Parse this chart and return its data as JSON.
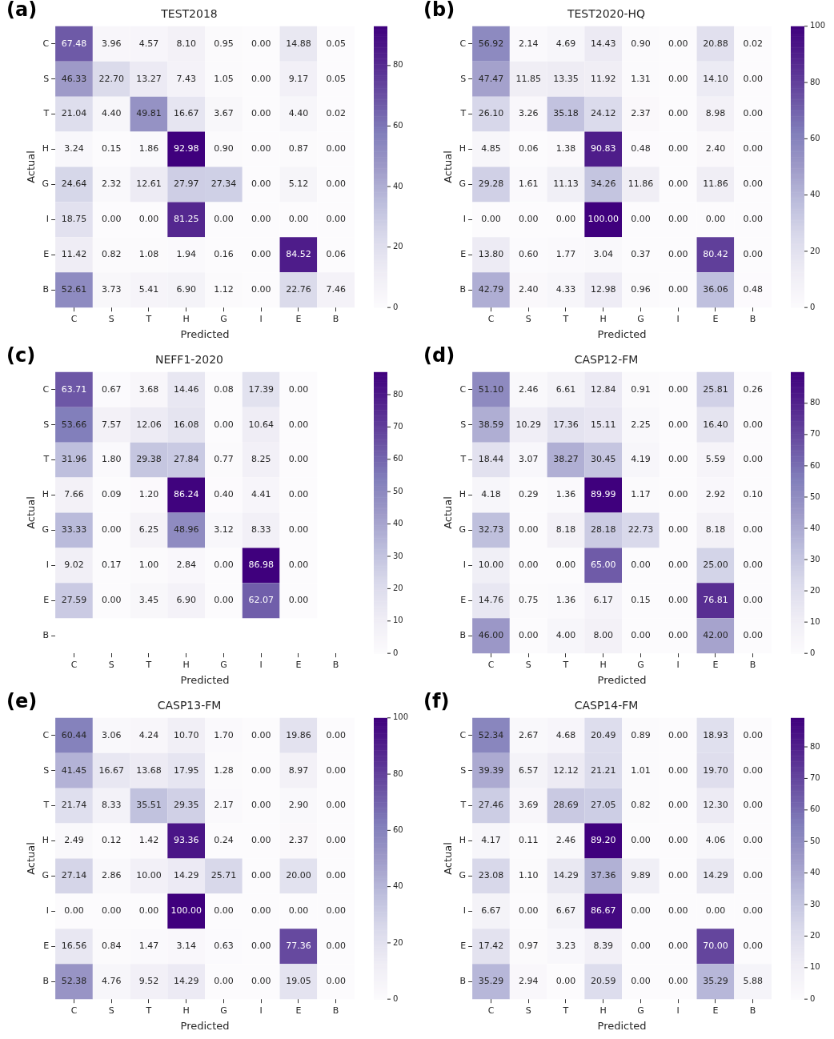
{
  "chart_data": [
    {
      "type": "heatmap",
      "title": "TEST2018",
      "xlabel": "Predicted",
      "ylabel": "Actual",
      "annotations": [
        "(a)"
      ],
      "data_labels": true,
      "clim": [
        0,
        92.98
      ],
      "cticks": [
        0,
        20,
        40,
        60,
        80
      ],
      "categories": [
        "C",
        "S",
        "T",
        "H",
        "G",
        "I",
        "E",
        "B"
      ],
      "y_categories": [
        "C",
        "S",
        "T",
        "H",
        "G",
        "I",
        "E",
        "B"
      ],
      "cells": [
        [
          67.48,
          3.96,
          4.57,
          8.1,
          0.95,
          0.0,
          14.88,
          0.05
        ],
        [
          46.33,
          22.7,
          13.27,
          7.43,
          1.05,
          0.0,
          9.17,
          0.05
        ],
        [
          21.04,
          4.4,
          49.81,
          16.67,
          3.67,
          0.0,
          4.4,
          0.02
        ],
        [
          3.24,
          0.15,
          1.86,
          92.98,
          0.9,
          0.0,
          0.87,
          0.0
        ],
        [
          24.64,
          2.32,
          12.61,
          27.97,
          27.34,
          0.0,
          5.12,
          0.0
        ],
        [
          18.75,
          0.0,
          0.0,
          81.25,
          0.0,
          0.0,
          0.0,
          0.0
        ],
        [
          11.42,
          0.82,
          1.08,
          1.94,
          0.16,
          0.0,
          84.52,
          0.06
        ],
        [
          52.61,
          3.73,
          5.41,
          6.9,
          1.12,
          0.0,
          22.76,
          7.46
        ]
      ],
      "cell_labels": [
        [
          "67.48",
          "3.96",
          "4.57",
          "8.10",
          "0.95",
          "0.00",
          "14.88",
          "0.05"
        ],
        [
          "46.33",
          "22.70",
          "13.27",
          "7.43",
          "1.05",
          "0.00",
          "9.17",
          "0.05"
        ],
        [
          "21.04",
          "4.40",
          "49.81",
          "16.67",
          "3.67",
          "0.00",
          "4.40",
          "0.02"
        ],
        [
          "3.24",
          "0.15",
          "1.86",
          "92.98",
          "0.90",
          "0.00",
          "0.87",
          "0.00"
        ],
        [
          "24.64",
          "2.32",
          "12.61",
          "27.97",
          "27.34",
          "0.00",
          "5.12",
          "0.00"
        ],
        [
          "18.75",
          "0.00",
          "0.00",
          "81.25",
          "0.00",
          "0.00",
          "0.00",
          "0.00"
        ],
        [
          "11.42",
          "0.82",
          "1.08",
          "1.94",
          "0.16",
          "0.00",
          "84.52",
          "0.06"
        ],
        [
          "52.61",
          "3.73",
          "5.41",
          "6.90",
          "1.12",
          "0.00",
          "22.76",
          "7.46"
        ]
      ]
    },
    {
      "type": "heatmap",
      "title": "TEST2020-HQ",
      "xlabel": "Predicted",
      "ylabel": "Actual",
      "annotations": [
        "(b)"
      ],
      "data_labels": true,
      "clim": [
        0,
        100
      ],
      "cticks": [
        0,
        20,
        40,
        60,
        80,
        100
      ],
      "categories": [
        "C",
        "S",
        "T",
        "H",
        "G",
        "I",
        "E",
        "B"
      ],
      "y_categories": [
        "C",
        "S",
        "T",
        "H",
        "G",
        "I",
        "E",
        "B"
      ],
      "cells": [
        [
          56.92,
          2.14,
          4.69,
          14.43,
          0.9,
          0.0,
          20.88,
          0.02
        ],
        [
          47.47,
          11.85,
          13.35,
          11.92,
          1.31,
          0.0,
          14.1,
          0.0
        ],
        [
          26.1,
          3.26,
          35.18,
          24.12,
          2.37,
          0.0,
          8.98,
          0.0
        ],
        [
          4.85,
          0.06,
          1.38,
          90.83,
          0.48,
          0.0,
          2.4,
          0.0
        ],
        [
          29.28,
          1.61,
          11.13,
          34.26,
          11.86,
          0.0,
          11.86,
          0.0
        ],
        [
          0.0,
          0.0,
          0.0,
          100.0,
          0.0,
          0.0,
          0.0,
          0.0
        ],
        [
          13.8,
          0.6,
          1.77,
          3.04,
          0.37,
          0.0,
          80.42,
          0.0
        ],
        [
          42.79,
          2.4,
          4.33,
          12.98,
          0.96,
          0.0,
          36.06,
          0.48
        ]
      ],
      "cell_labels": [
        [
          "56.92",
          "2.14",
          "4.69",
          "14.43",
          "0.90",
          "0.00",
          "20.88",
          "0.02"
        ],
        [
          "47.47",
          "11.85",
          "13.35",
          "11.92",
          "1.31",
          "0.00",
          "14.10",
          "0.00"
        ],
        [
          "26.10",
          "3.26",
          "35.18",
          "24.12",
          "2.37",
          "0.00",
          "8.98",
          "0.00"
        ],
        [
          "4.85",
          "0.06",
          "1.38",
          "90.83",
          "0.48",
          "0.00",
          "2.40",
          "0.00"
        ],
        [
          "29.28",
          "1.61",
          "11.13",
          "34.26",
          "11.86",
          "0.00",
          "11.86",
          "0.00"
        ],
        [
          "0.00",
          "0.00",
          "0.00",
          "100.00",
          "0.00",
          "0.00",
          "0.00",
          "0.00"
        ],
        [
          "13.80",
          "0.60",
          "1.77",
          "3.04",
          "0.37",
          "0.00",
          "80.42",
          "0.00"
        ],
        [
          "42.79",
          "2.40",
          "4.33",
          "12.98",
          "0.96",
          "0.00",
          "36.06",
          "0.48"
        ]
      ]
    },
    {
      "type": "heatmap",
      "title": "NEFF1-2020",
      "xlabel": "Predicted",
      "ylabel": "Actual",
      "annotations": [
        "(c)"
      ],
      "data_labels": true,
      "clim": [
        0,
        86.98
      ],
      "cticks": [
        0,
        10,
        20,
        30,
        40,
        50,
        60,
        70,
        80
      ],
      "categories": [
        "C",
        "S",
        "T",
        "H",
        "G",
        "I",
        "E",
        "B"
      ],
      "y_categories": [
        "C",
        "S",
        "T",
        "H",
        "G",
        "I",
        "E",
        "B"
      ],
      "cells": [
        [
          63.71,
          0.67,
          3.68,
          14.46,
          0.08,
          17.39,
          0.0,
          null
        ],
        [
          53.66,
          7.57,
          12.06,
          16.08,
          0.0,
          10.64,
          0.0,
          null
        ],
        [
          31.96,
          1.8,
          29.38,
          27.84,
          0.77,
          8.25,
          0.0,
          null
        ],
        [
          7.66,
          0.09,
          1.2,
          86.24,
          0.4,
          4.41,
          0.0,
          null
        ],
        [
          33.33,
          0.0,
          6.25,
          48.96,
          3.12,
          8.33,
          0.0,
          null
        ],
        [
          9.02,
          0.17,
          1.0,
          2.84,
          0.0,
          86.98,
          0.0,
          null
        ],
        [
          27.59,
          0.0,
          3.45,
          6.9,
          0.0,
          62.07,
          0.0,
          null
        ],
        [
          null,
          null,
          null,
          null,
          null,
          null,
          null,
          null
        ]
      ],
      "cell_labels": [
        [
          "63.71",
          "0.67",
          "3.68",
          "14.46",
          "0.08",
          "17.39",
          "0.00",
          null
        ],
        [
          "53.66",
          "7.57",
          "12.06",
          "16.08",
          "0.00",
          "10.64",
          "0.00",
          null
        ],
        [
          "31.96",
          "1.80",
          "29.38",
          "27.84",
          "0.77",
          "8.25",
          "0.00",
          null
        ],
        [
          "7.66",
          "0.09",
          "1.20",
          "86.24",
          "0.40",
          "4.41",
          "0.00",
          null
        ],
        [
          "33.33",
          "0.00",
          "6.25",
          "48.96",
          "3.12",
          "8.33",
          "0.00",
          null
        ],
        [
          "9.02",
          "0.17",
          "1.00",
          "2.84",
          "0.00",
          "86.98",
          "0.00",
          null
        ],
        [
          "27.59",
          "0.00",
          "3.45",
          "6.90",
          "0.00",
          "62.07",
          "0.00",
          null
        ],
        [
          null,
          null,
          null,
          null,
          null,
          null,
          null,
          null
        ]
      ]
    },
    {
      "type": "heatmap",
      "title": "CASP12-FM",
      "xlabel": "Predicted",
      "ylabel": "Actual",
      "annotations": [
        "(d)"
      ],
      "data_labels": true,
      "clim": [
        0,
        89.99
      ],
      "cticks": [
        0,
        10,
        20,
        30,
        40,
        50,
        60,
        70,
        80
      ],
      "categories": [
        "C",
        "S",
        "T",
        "H",
        "G",
        "I",
        "E",
        "B"
      ],
      "y_categories": [
        "C",
        "S",
        "T",
        "H",
        "G",
        "I",
        "E",
        "B"
      ],
      "cells": [
        [
          51.1,
          2.46,
          6.61,
          12.84,
          0.91,
          0.0,
          25.81,
          0.26
        ],
        [
          38.59,
          10.29,
          17.36,
          15.11,
          2.25,
          0.0,
          16.4,
          0.0
        ],
        [
          18.44,
          3.07,
          38.27,
          30.45,
          4.19,
          0.0,
          5.59,
          0.0
        ],
        [
          4.18,
          0.29,
          1.36,
          89.99,
          1.17,
          0.0,
          2.92,
          0.1
        ],
        [
          32.73,
          0.0,
          8.18,
          28.18,
          22.73,
          0.0,
          8.18,
          0.0
        ],
        [
          10.0,
          0.0,
          0.0,
          65.0,
          0.0,
          0.0,
          25.0,
          0.0
        ],
        [
          14.76,
          0.75,
          1.36,
          6.17,
          0.15,
          0.0,
          76.81,
          0.0
        ],
        [
          46.0,
          0.0,
          4.0,
          8.0,
          0.0,
          0.0,
          42.0,
          0.0
        ]
      ],
      "cell_labels": [
        [
          "51.10",
          "2.46",
          "6.61",
          "12.84",
          "0.91",
          "0.00",
          "25.81",
          "0.26"
        ],
        [
          "38.59",
          "10.29",
          "17.36",
          "15.11",
          "2.25",
          "0.00",
          "16.40",
          "0.00"
        ],
        [
          "18.44",
          "3.07",
          "38.27",
          "30.45",
          "4.19",
          "0.00",
          "5.59",
          "0.00"
        ],
        [
          "4.18",
          "0.29",
          "1.36",
          "89.99",
          "1.17",
          "0.00",
          "2.92",
          "0.10"
        ],
        [
          "32.73",
          "0.00",
          "8.18",
          "28.18",
          "22.73",
          "0.00",
          "8.18",
          "0.00"
        ],
        [
          "10.00",
          "0.00",
          "0.00",
          "65.00",
          "0.00",
          "0.00",
          "25.00",
          "0.00"
        ],
        [
          "14.76",
          "0.75",
          "1.36",
          "6.17",
          "0.15",
          "0.00",
          "76.81",
          "0.00"
        ],
        [
          "46.00",
          "0.00",
          "4.00",
          "8.00",
          "0.00",
          "0.00",
          "42.00",
          "0.00"
        ]
      ]
    },
    {
      "type": "heatmap",
      "title": "CASP13-FM",
      "xlabel": "Predicted",
      "ylabel": "Actual",
      "annotations": [
        "(e)"
      ],
      "data_labels": true,
      "clim": [
        0,
        100
      ],
      "cticks": [
        0,
        20,
        40,
        60,
        80,
        100
      ],
      "categories": [
        "C",
        "S",
        "T",
        "H",
        "G",
        "I",
        "E",
        "B"
      ],
      "y_categories": [
        "C",
        "S",
        "T",
        "H",
        "G",
        "I",
        "E",
        "B"
      ],
      "cells": [
        [
          60.44,
          3.06,
          4.24,
          10.7,
          1.7,
          0.0,
          19.86,
          0.0
        ],
        [
          41.45,
          16.67,
          13.68,
          17.95,
          1.28,
          0.0,
          8.97,
          0.0
        ],
        [
          21.74,
          8.33,
          35.51,
          29.35,
          2.17,
          0.0,
          2.9,
          0.0
        ],
        [
          2.49,
          0.12,
          1.42,
          93.36,
          0.24,
          0.0,
          2.37,
          0.0
        ],
        [
          27.14,
          2.86,
          10.0,
          14.29,
          25.71,
          0.0,
          20.0,
          0.0
        ],
        [
          0.0,
          0.0,
          0.0,
          100.0,
          0.0,
          0.0,
          0.0,
          0.0
        ],
        [
          16.56,
          0.84,
          1.47,
          3.14,
          0.63,
          0.0,
          77.36,
          0.0
        ],
        [
          52.38,
          4.76,
          9.52,
          14.29,
          0.0,
          0.0,
          19.05,
          0.0
        ]
      ],
      "cell_labels": [
        [
          "60.44",
          "3.06",
          "4.24",
          "10.70",
          "1.70",
          "0.00",
          "19.86",
          "0.00"
        ],
        [
          "41.45",
          "16.67",
          "13.68",
          "17.95",
          "1.28",
          "0.00",
          "8.97",
          "0.00"
        ],
        [
          "21.74",
          "8.33",
          "35.51",
          "29.35",
          "2.17",
          "0.00",
          "2.90",
          "0.00"
        ],
        [
          "2.49",
          "0.12",
          "1.42",
          "93.36",
          "0.24",
          "0.00",
          "2.37",
          "0.00"
        ],
        [
          "27.14",
          "2.86",
          "10.00",
          "14.29",
          "25.71",
          "0.00",
          "20.00",
          "0.00"
        ],
        [
          "0.00",
          "0.00",
          "0.00",
          "100.00",
          "0.00",
          "0.00",
          "0.00",
          "0.00"
        ],
        [
          "16.56",
          "0.84",
          "1.47",
          "3.14",
          "0.63",
          "0.00",
          "77.36",
          "0.00"
        ],
        [
          "52.38",
          "4.76",
          "9.52",
          "14.29",
          "0.00",
          "0.00",
          "19.05",
          "0.00"
        ]
      ]
    },
    {
      "type": "heatmap",
      "title": "CASP14-FM",
      "xlabel": "Predicted",
      "ylabel": "Actual",
      "annotations": [
        "(f)"
      ],
      "data_labels": true,
      "clim": [
        0,
        89.2
      ],
      "cticks": [
        0,
        10,
        20,
        30,
        40,
        50,
        60,
        70,
        80
      ],
      "categories": [
        "C",
        "S",
        "T",
        "H",
        "G",
        "I",
        "E",
        "B"
      ],
      "y_categories": [
        "C",
        "S",
        "T",
        "H",
        "G",
        "I",
        "E",
        "B"
      ],
      "cells": [
        [
          52.34,
          2.67,
          4.68,
          20.49,
          0.89,
          0.0,
          18.93,
          0.0
        ],
        [
          39.39,
          6.57,
          12.12,
          21.21,
          1.01,
          0.0,
          19.7,
          0.0
        ],
        [
          27.46,
          3.69,
          28.69,
          27.05,
          0.82,
          0.0,
          12.3,
          0.0
        ],
        [
          4.17,
          0.11,
          2.46,
          89.2,
          0.0,
          0.0,
          4.06,
          0.0
        ],
        [
          23.08,
          1.1,
          14.29,
          37.36,
          9.89,
          0.0,
          14.29,
          0.0
        ],
        [
          6.67,
          0.0,
          6.67,
          86.67,
          0.0,
          0.0,
          0.0,
          0.0
        ],
        [
          17.42,
          0.97,
          3.23,
          8.39,
          0.0,
          0.0,
          70.0,
          0.0
        ],
        [
          35.29,
          2.94,
          0.0,
          20.59,
          0.0,
          0.0,
          35.29,
          5.88
        ]
      ],
      "cell_labels": [
        [
          "52.34",
          "2.67",
          "4.68",
          "20.49",
          "0.89",
          "0.00",
          "18.93",
          "0.00"
        ],
        [
          "39.39",
          "6.57",
          "12.12",
          "21.21",
          "1.01",
          "0.00",
          "19.70",
          "0.00"
        ],
        [
          "27.46",
          "3.69",
          "28.69",
          "27.05",
          "0.82",
          "0.00",
          "12.30",
          "0.00"
        ],
        [
          "4.17",
          "0.11",
          "2.46",
          "89.20",
          "0.00",
          "0.00",
          "4.06",
          "0.00"
        ],
        [
          "23.08",
          "1.10",
          "14.29",
          "37.36",
          "9.89",
          "0.00",
          "14.29",
          "0.00"
        ],
        [
          "6.67",
          "0.00",
          "6.67",
          "86.67",
          "0.00",
          "0.00",
          "0.00",
          "0.00"
        ],
        [
          "17.42",
          "0.97",
          "3.23",
          "8.39",
          "0.00",
          "0.00",
          "70.00",
          "0.00"
        ],
        [
          "35.29",
          "2.94",
          "0.00",
          "20.59",
          "0.00",
          "0.00",
          "35.29",
          "5.88"
        ]
      ]
    }
  ]
}
